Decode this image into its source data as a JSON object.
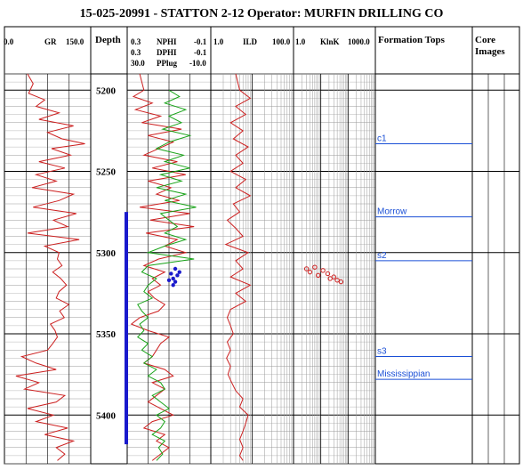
{
  "title": "15-025-20991 - STATTON 2-12  Operator: MURFIN DRILLING CO",
  "colors": {
    "gr": "#cc1f1f",
    "nphi": "#cc1f1f",
    "dphi": "#18a318",
    "pplug": "#1a1acc",
    "ild": "#cc1f1f",
    "klnk": "#cc1f1f",
    "formation_tops": "#1a4fd6",
    "core_bar": "#1a1acc",
    "grid_major": "#000000",
    "grid_minor": "#9a9a9a"
  },
  "tracks": {
    "gr": {
      "name": "GR",
      "min": "0.0",
      "max": "150.0"
    },
    "depth": {
      "name": "Depth"
    },
    "porosity": [
      {
        "name": "NPHI",
        "min": "0.3",
        "max": "-0.1"
      },
      {
        "name": "DPHI",
        "min": "0.3",
        "max": "-0.1"
      },
      {
        "name": "PPlug",
        "min": "30.0",
        "max": "-10.0"
      }
    ],
    "ild": {
      "name": "ILD",
      "min": "1.0",
      "max": "100.0"
    },
    "klnk": {
      "name": "KlnK",
      "min": "1.0",
      "max": "1000.0"
    },
    "formation_tops": {
      "name": "Formation Tops"
    },
    "core_images": {
      "name": "Core Images"
    }
  },
  "chart_data": {
    "type": "line",
    "y_axis": "Depth",
    "ylim": [
      5190,
      5430
    ],
    "depth_ticks": [
      "5200",
      "5250",
      "5300",
      "5350",
      "5400"
    ],
    "formation_tops": [
      {
        "name": "c1",
        "depth": 5233
      },
      {
        "name": "Morrow",
        "depth": 5278
      },
      {
        "name": "s2",
        "depth": 5305
      },
      {
        "name": "s3",
        "depth": 5364
      },
      {
        "name": "Mississippian",
        "depth": 5378
      }
    ],
    "core_interval": [
      5275,
      5418
    ],
    "series": [
      {
        "name": "GR",
        "track": "gr",
        "xlim": [
          0,
          150
        ],
        "depth": [
          5190,
          5196,
          5202,
          5206,
          5210,
          5214,
          5218,
          5222,
          5226,
          5230,
          5233,
          5236,
          5240,
          5244,
          5248,
          5252,
          5256,
          5260,
          5264,
          5268,
          5272,
          5276,
          5280,
          5284,
          5288,
          5292,
          5296,
          5300,
          5304,
          5308,
          5312,
          5316,
          5320,
          5324,
          5328,
          5332,
          5336,
          5340,
          5344,
          5348,
          5352,
          5356,
          5360,
          5364,
          5368,
          5372,
          5376,
          5380,
          5384,
          5388,
          5392,
          5396,
          5400,
          5404,
          5408,
          5412,
          5416,
          5420,
          5424,
          5428
        ],
        "values": [
          40,
          50,
          42,
          70,
          55,
          95,
          60,
          120,
          75,
          100,
          140,
          82,
          115,
          60,
          105,
          55,
          90,
          48,
          120,
          95,
          50,
          125,
          85,
          110,
          40,
          130,
          70,
          95,
          92,
          100,
          84,
          98,
          108,
          95,
          90,
          112,
          96,
          104,
          80,
          88,
          92,
          84,
          75,
          30,
          55,
          90,
          20,
          60,
          35,
          105,
          90,
          40,
          85,
          55,
          110,
          70,
          120,
          90,
          105,
          92
        ]
      },
      {
        "name": "NPHI",
        "track": "porosity",
        "xlim": [
          0.3,
          -0.1
        ],
        "depth": [
          5190,
          5200,
          5204,
          5208,
          5212,
          5216,
          5220,
          5224,
          5228,
          5232,
          5236,
          5240,
          5244,
          5248,
          5252,
          5256,
          5260,
          5264,
          5268,
          5272,
          5276,
          5280,
          5284,
          5288,
          5292,
          5296,
          5300,
          5304,
          5308,
          5312,
          5316,
          5320,
          5324,
          5328,
          5332,
          5336,
          5340,
          5344,
          5348,
          5352,
          5356,
          5360,
          5364,
          5368,
          5372,
          5376,
          5380,
          5384,
          5388,
          5392,
          5396,
          5400,
          5404,
          5408,
          5412,
          5416,
          5420,
          5424,
          5428
        ],
        "values": [
          0.24,
          0.22,
          0.27,
          0.18,
          0.26,
          0.14,
          0.23,
          0.04,
          0.2,
          0.08,
          0.15,
          0.22,
          0.06,
          0.18,
          0.02,
          0.2,
          0.09,
          0.16,
          0.05,
          0.24,
          0.0,
          0.19,
          -0.02,
          0.21,
          0.06,
          0.12,
          0.02,
          0.15,
          0.22,
          0.12,
          0.18,
          0.14,
          0.2,
          0.17,
          0.12,
          0.15,
          0.24,
          0.28,
          0.2,
          0.1,
          0.14,
          0.16,
          0.18,
          0.22,
          0.12,
          0.08,
          0.18,
          0.12,
          0.16,
          0.2,
          0.14,
          0.08,
          0.18,
          0.22,
          0.12,
          0.16,
          0.1,
          0.14,
          0.18
        ]
      },
      {
        "name": "DPHI",
        "track": "porosity",
        "xlim": [
          0.3,
          -0.1
        ],
        "depth": [
          5200,
          5204,
          5208,
          5212,
          5216,
          5220,
          5224,
          5228,
          5232,
          5236,
          5240,
          5244,
          5248,
          5252,
          5256,
          5260,
          5264,
          5268,
          5272,
          5276,
          5280,
          5284,
          5288,
          5292,
          5296,
          5300,
          5304,
          5308,
          5312,
          5316,
          5320,
          5324,
          5328,
          5332,
          5336,
          5340,
          5344,
          5348,
          5352,
          5356,
          5360,
          5364,
          5368,
          5372,
          5376,
          5380,
          5384,
          5388,
          5392,
          5396,
          5400,
          5404,
          5408,
          5412,
          5416,
          5420,
          5424,
          5428
        ],
        "values": [
          0.1,
          0.05,
          0.12,
          0.02,
          0.1,
          0.04,
          0.13,
          0.0,
          0.1,
          0.16,
          0.03,
          0.12,
          0.0,
          0.14,
          0.04,
          0.16,
          0.02,
          0.12,
          -0.03,
          0.14,
          0.1,
          0.06,
          0.12,
          0.02,
          0.12,
          0.2,
          -0.02,
          0.2,
          0.23,
          0.16,
          0.2,
          0.22,
          0.18,
          0.25,
          0.23,
          0.2,
          0.24,
          0.22,
          0.25,
          0.2,
          0.23,
          0.18,
          0.22,
          0.16,
          0.2,
          0.14,
          0.12,
          0.18,
          0.14,
          0.1,
          0.16,
          0.12,
          0.14,
          0.18,
          0.12,
          0.15,
          0.13,
          0.16
        ]
      },
      {
        "name": "PPlug",
        "track": "porosity",
        "xlim": [
          30,
          -10
        ],
        "style": "points",
        "depth": [
          5310,
          5312,
          5313,
          5314,
          5316,
          5317,
          5318,
          5320
        ],
        "values": [
          7,
          5,
          9,
          6,
          8,
          10,
          7,
          8
        ]
      },
      {
        "name": "ILD",
        "track": "ild",
        "xlim": [
          1,
          100
        ],
        "scale": "log",
        "depth": [
          5190,
          5200,
          5205,
          5210,
          5215,
          5220,
          5225,
          5230,
          5235,
          5240,
          5245,
          5250,
          5255,
          5260,
          5265,
          5270,
          5275,
          5280,
          5285,
          5290,
          5295,
          5300,
          5305,
          5310,
          5315,
          5320,
          5325,
          5330,
          5335,
          5340,
          5345,
          5350,
          5355,
          5360,
          5365,
          5370,
          5375,
          5380,
          5385,
          5390,
          5395,
          5400,
          5405,
          5410,
          5415,
          5420,
          5425,
          5428
        ],
        "values": [
          4,
          5,
          9,
          4,
          7,
          3,
          6,
          3.5,
          8,
          4,
          6,
          3,
          7,
          4,
          9,
          3.5,
          5,
          2.5,
          4,
          6,
          2.3,
          8,
          4,
          6,
          3,
          9,
          4,
          7,
          3,
          2.5,
          3,
          3.5,
          2.5,
          3,
          2.4,
          3,
          2.6,
          3.2,
          4,
          6,
          5,
          8,
          7,
          6,
          5,
          6,
          5,
          6
        ]
      },
      {
        "name": "KlnK",
        "track": "klnk",
        "xlim": [
          1,
          1000
        ],
        "scale": "log",
        "style": "points",
        "depth": [
          5310,
          5312,
          5309,
          5314,
          5311,
          5313,
          5316,
          5315,
          5317,
          5318
        ],
        "values": [
          3,
          4,
          6,
          8,
          12,
          18,
          22,
          30,
          40,
          55
        ]
      }
    ]
  }
}
